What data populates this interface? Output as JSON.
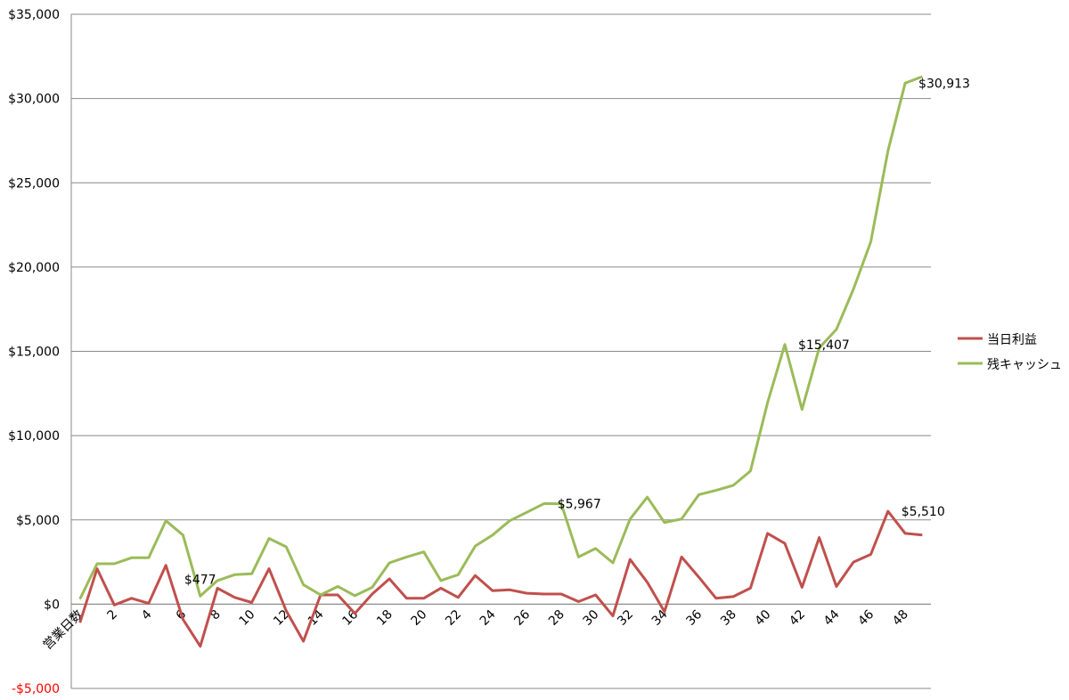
{
  "chart_data": {
    "type": "line",
    "categories": [
      "営業日数",
      null,
      2,
      null,
      4,
      null,
      6,
      null,
      8,
      null,
      10,
      null,
      12,
      null,
      14,
      null,
      16,
      null,
      18,
      null,
      20,
      null,
      22,
      null,
      24,
      null,
      26,
      null,
      28,
      null,
      30,
      null,
      32,
      null,
      34,
      null,
      36,
      null,
      38,
      null,
      40,
      null,
      42,
      null,
      44,
      null,
      46,
      null,
      48,
      null
    ],
    "series": [
      {
        "name": "当日利益",
        "color": "#c0504d",
        "values": [
          -1100,
          2100,
          -50,
          350,
          50,
          2300,
          -900,
          -2500,
          950,
          400,
          100,
          2100,
          -400,
          -2200,
          550,
          550,
          -550,
          600,
          1500,
          350,
          350,
          950,
          400,
          1700,
          800,
          850,
          650,
          600,
          600,
          150,
          550,
          -700,
          2650,
          1300,
          -450,
          2800,
          1600,
          350,
          450,
          950,
          4200,
          3600,
          1000,
          3950,
          1050,
          2500,
          2950,
          5510,
          4200,
          4100
        ],
        "value_labels": [
          null,
          null,
          null,
          null,
          null,
          null,
          null,
          null,
          null,
          null,
          null,
          null,
          null,
          null,
          null,
          null,
          null,
          null,
          null,
          null,
          null,
          null,
          null,
          null,
          null,
          null,
          null,
          null,
          null,
          null,
          null,
          null,
          null,
          null,
          null,
          null,
          null,
          null,
          null,
          null,
          null,
          null,
          null,
          null,
          null,
          null,
          null,
          "$5,510",
          null,
          null
        ]
      },
      {
        "name": "残キャッシュ",
        "color": "#9bbb59",
        "values": [
          300,
          2400,
          2400,
          2750,
          2750,
          4950,
          4100,
          477,
          1400,
          1750,
          1800,
          3900,
          3400,
          1150,
          550,
          1050,
          500,
          1000,
          2450,
          2800,
          3100,
          1400,
          1750,
          3450,
          4100,
          4950,
          5450,
          5967,
          5950,
          2800,
          3300,
          2450,
          5050,
          6350,
          4850,
          5050,
          6500,
          6750,
          7050,
          7900,
          11950,
          15407,
          11550,
          15200,
          16300,
          18700,
          21500,
          26900,
          30913,
          31300
        ],
        "value_labels": [
          null,
          null,
          null,
          null,
          null,
          null,
          null,
          "$477",
          null,
          null,
          null,
          null,
          null,
          null,
          null,
          null,
          null,
          null,
          null,
          null,
          null,
          null,
          null,
          null,
          null,
          null,
          null,
          "$5,967",
          null,
          null,
          null,
          null,
          null,
          null,
          null,
          null,
          null,
          null,
          null,
          null,
          null,
          "$15,407",
          null,
          null,
          null,
          null,
          null,
          null,
          "$30,913",
          null
        ]
      }
    ],
    "ylim": [
      -5000,
      35000
    ],
    "yticks": [
      {
        "value": -5000,
        "label": "-$5,000"
      },
      {
        "value": 0,
        "label": "$0"
      },
      {
        "value": 5000,
        "label": "$5,000"
      },
      {
        "value": 10000,
        "label": "$10,000"
      },
      {
        "value": 15000,
        "label": "$15,000"
      },
      {
        "value": 20000,
        "label": "$20,000"
      },
      {
        "value": 25000,
        "label": "$25,000"
      },
      {
        "value": 30000,
        "label": "$30,000"
      },
      {
        "value": 35000,
        "label": "$35,000"
      }
    ],
    "negative_tick_color": "#ff0000",
    "grid": true,
    "legend": "right"
  }
}
